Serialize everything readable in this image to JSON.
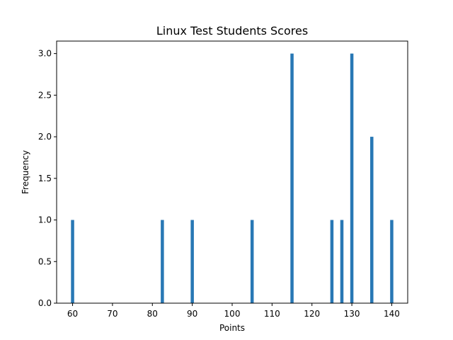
{
  "chart_data": {
    "type": "bar",
    "title": "Linux Test Students Scores",
    "xlabel": "Points",
    "ylabel": "Frequency",
    "xlim": [
      56,
      144
    ],
    "ylim": [
      0,
      3.15
    ],
    "bin_width": 0.8,
    "xticks": [
      60,
      70,
      80,
      90,
      100,
      110,
      120,
      130,
      140
    ],
    "yticks": [
      0.0,
      0.5,
      1.0,
      1.5,
      2.0,
      2.5,
      3.0
    ],
    "ytick_labels": [
      "0.0",
      "0.5",
      "1.0",
      "1.5",
      "2.0",
      "2.5",
      "3.0"
    ],
    "color": "#2878b5",
    "bars": [
      {
        "x": 60,
        "value": 1
      },
      {
        "x": 82.5,
        "value": 1
      },
      {
        "x": 90,
        "value": 1
      },
      {
        "x": 105,
        "value": 1
      },
      {
        "x": 115,
        "value": 3
      },
      {
        "x": 125,
        "value": 1
      },
      {
        "x": 127.5,
        "value": 1
      },
      {
        "x": 130,
        "value": 3
      },
      {
        "x": 135,
        "value": 2
      },
      {
        "x": 140,
        "value": 1
      }
    ]
  }
}
